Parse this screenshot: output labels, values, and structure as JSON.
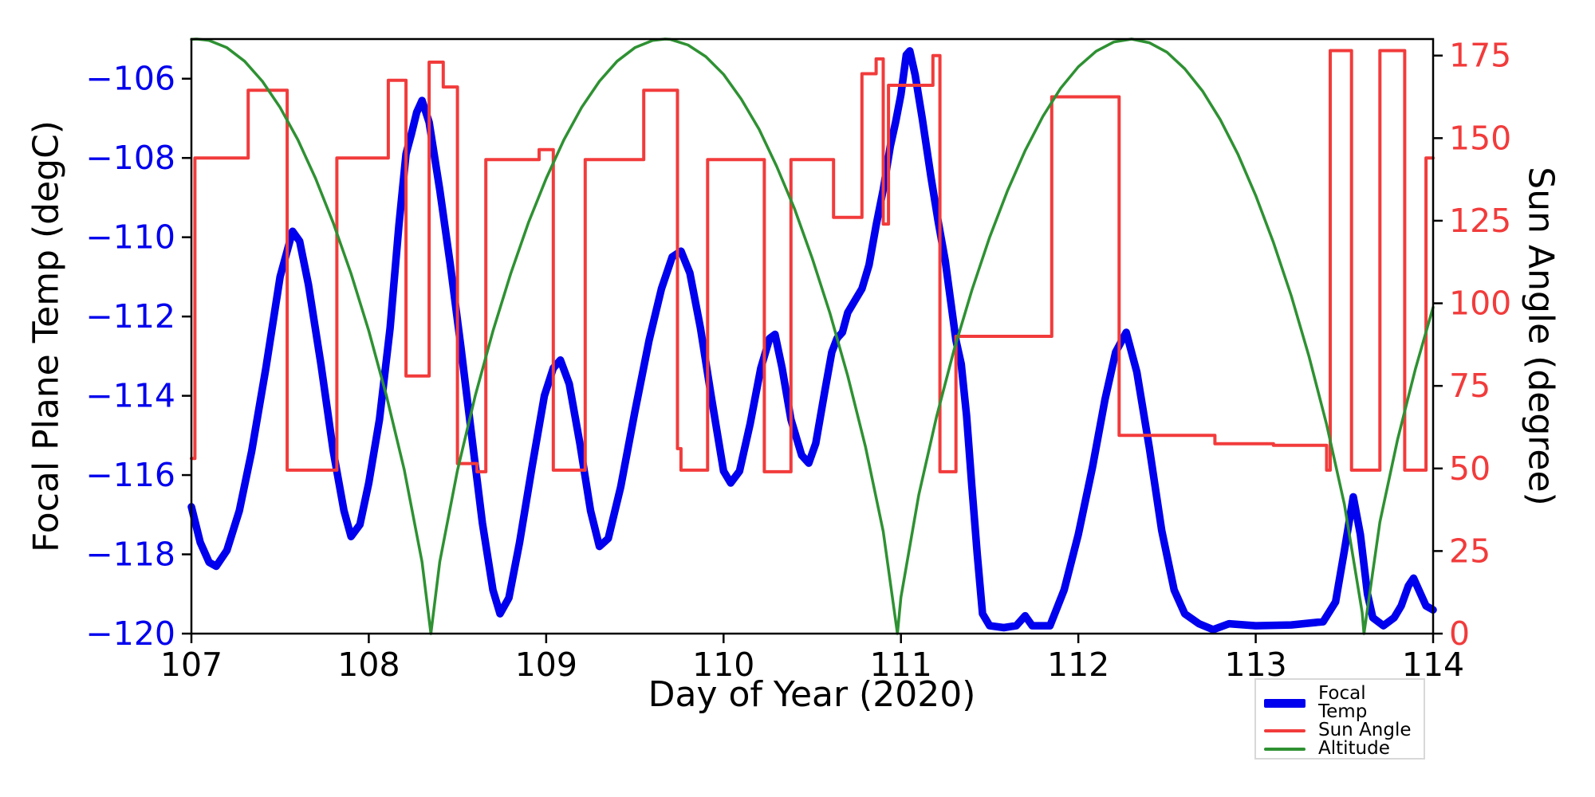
{
  "chart_data": {
    "type": "line",
    "title": "",
    "xlabel": "Day of Year (2020)",
    "ylabel_left": "Focal Plane Temp (degC)",
    "ylabel_right": "Sun Angle (degree)",
    "x_range": [
      107,
      114
    ],
    "x_ticks": [
      107,
      108,
      109,
      110,
      111,
      112,
      113,
      114
    ],
    "x_tick_labels": [
      "107",
      "108",
      "109",
      "110",
      "111",
      "112",
      "113",
      "114"
    ],
    "y_left_range": [
      -120,
      -105
    ],
    "y_left_ticks": [
      -106,
      -108,
      -110,
      -112,
      -114,
      -116,
      -118,
      -120
    ],
    "y_left_tick_labels": [
      "−106",
      "−108",
      "−110",
      "−112",
      "−114",
      "−116",
      "−118",
      "−120"
    ],
    "y_right_range": [
      0,
      180
    ],
    "y_right_ticks": [
      0,
      25,
      50,
      75,
      100,
      125,
      150,
      175
    ],
    "y_right_tick_labels": [
      "0",
      "25",
      "50",
      "75",
      "100",
      "125",
      "150",
      "175"
    ],
    "grid": false,
    "legend_position": "below-right-outside",
    "colors": {
      "focal_temp": "#0000ee",
      "sun_angle": "#f23b3b",
      "altitude": "#2e9132",
      "left_tick_text": "#0000ee",
      "right_tick_text": "#f23b3b",
      "axis": "#000000"
    },
    "series": [
      {
        "name": "Focal Temp",
        "axis": "left",
        "color": "#0000ee",
        "line_width": 9.5,
        "style": "line",
        "points": [
          [
            107.0,
            -116.8
          ],
          [
            107.05,
            -117.7
          ],
          [
            107.1,
            -118.2
          ],
          [
            107.14,
            -118.3
          ],
          [
            107.2,
            -117.9
          ],
          [
            107.27,
            -116.9
          ],
          [
            107.34,
            -115.4
          ],
          [
            107.42,
            -113.3
          ],
          [
            107.5,
            -111.0
          ],
          [
            107.57,
            -109.85
          ],
          [
            107.61,
            -110.1
          ],
          [
            107.66,
            -111.2
          ],
          [
            107.73,
            -113.2
          ],
          [
            107.8,
            -115.4
          ],
          [
            107.86,
            -116.9
          ],
          [
            107.9,
            -117.55
          ],
          [
            107.95,
            -117.25
          ],
          [
            108.0,
            -116.2
          ],
          [
            108.06,
            -114.6
          ],
          [
            108.12,
            -112.3
          ],
          [
            108.17,
            -109.7
          ],
          [
            108.21,
            -107.9
          ],
          [
            108.24,
            -107.4
          ],
          [
            108.27,
            -106.85
          ],
          [
            108.3,
            -106.55
          ],
          [
            108.34,
            -107.1
          ],
          [
            108.4,
            -108.8
          ],
          [
            108.46,
            -110.7
          ],
          [
            108.52,
            -112.8
          ],
          [
            108.58,
            -115.0
          ],
          [
            108.64,
            -117.2
          ],
          [
            108.7,
            -118.9
          ],
          [
            108.74,
            -119.5
          ],
          [
            108.79,
            -119.1
          ],
          [
            108.85,
            -117.7
          ],
          [
            108.92,
            -115.8
          ],
          [
            108.99,
            -114.0
          ],
          [
            109.04,
            -113.3
          ],
          [
            109.08,
            -113.1
          ],
          [
            109.13,
            -113.7
          ],
          [
            109.19,
            -115.2
          ],
          [
            109.25,
            -116.9
          ],
          [
            109.3,
            -117.8
          ],
          [
            109.35,
            -117.6
          ],
          [
            109.42,
            -116.3
          ],
          [
            109.5,
            -114.4
          ],
          [
            109.58,
            -112.6
          ],
          [
            109.65,
            -111.3
          ],
          [
            109.71,
            -110.5
          ],
          [
            109.76,
            -110.35
          ],
          [
            109.81,
            -110.9
          ],
          [
            109.87,
            -112.3
          ],
          [
            109.93,
            -114.0
          ],
          [
            110.0,
            -115.9
          ],
          [
            110.04,
            -116.2
          ],
          [
            110.09,
            -115.9
          ],
          [
            110.15,
            -114.7
          ],
          [
            110.21,
            -113.3
          ],
          [
            110.26,
            -112.55
          ],
          [
            110.29,
            -112.45
          ],
          [
            110.33,
            -113.3
          ],
          [
            110.38,
            -114.6
          ],
          [
            110.44,
            -115.5
          ],
          [
            110.48,
            -115.7
          ],
          [
            110.52,
            -115.2
          ],
          [
            110.57,
            -113.9
          ],
          [
            110.61,
            -112.9
          ],
          [
            110.64,
            -112.55
          ],
          [
            110.67,
            -112.4
          ],
          [
            110.7,
            -111.9
          ],
          [
            110.74,
            -111.6
          ],
          [
            110.78,
            -111.3
          ],
          [
            110.82,
            -110.7
          ],
          [
            110.86,
            -109.7
          ],
          [
            110.9,
            -108.8
          ],
          [
            110.94,
            -107.7
          ],
          [
            110.97,
            -107.1
          ],
          [
            111.0,
            -106.4
          ],
          [
            111.03,
            -105.4
          ],
          [
            111.05,
            -105.3
          ],
          [
            111.08,
            -105.9
          ],
          [
            111.12,
            -107.0
          ],
          [
            111.17,
            -108.5
          ],
          [
            111.21,
            -109.6
          ],
          [
            111.25,
            -110.6
          ],
          [
            111.28,
            -111.6
          ],
          [
            111.31,
            -112.6
          ],
          [
            111.34,
            -113.2
          ],
          [
            111.37,
            -114.5
          ],
          [
            111.4,
            -116.3
          ],
          [
            111.43,
            -118.0
          ],
          [
            111.46,
            -119.5
          ],
          [
            111.5,
            -119.8
          ],
          [
            111.58,
            -119.85
          ],
          [
            111.65,
            -119.8
          ],
          [
            111.7,
            -119.55
          ],
          [
            111.74,
            -119.8
          ],
          [
            111.84,
            -119.8
          ],
          [
            111.92,
            -118.9
          ],
          [
            112.0,
            -117.5
          ],
          [
            112.08,
            -115.8
          ],
          [
            112.15,
            -114.1
          ],
          [
            112.21,
            -112.9
          ],
          [
            112.27,
            -112.4
          ],
          [
            112.33,
            -113.4
          ],
          [
            112.4,
            -115.3
          ],
          [
            112.47,
            -117.4
          ],
          [
            112.54,
            -118.9
          ],
          [
            112.6,
            -119.5
          ],
          [
            112.68,
            -119.75
          ],
          [
            112.76,
            -119.9
          ],
          [
            112.85,
            -119.75
          ],
          [
            113.0,
            -119.8
          ],
          [
            113.2,
            -119.78
          ],
          [
            113.38,
            -119.7
          ],
          [
            113.45,
            -119.2
          ],
          [
            113.5,
            -117.9
          ],
          [
            113.55,
            -116.55
          ],
          [
            113.59,
            -117.5
          ],
          [
            113.63,
            -119.0
          ],
          [
            113.66,
            -119.6
          ],
          [
            113.72,
            -119.8
          ],
          [
            113.78,
            -119.6
          ],
          [
            113.82,
            -119.3
          ],
          [
            113.86,
            -118.8
          ],
          [
            113.89,
            -118.6
          ],
          [
            113.93,
            -119.0
          ],
          [
            113.96,
            -119.3
          ],
          [
            114.0,
            -119.4
          ]
        ]
      },
      {
        "name": "Sun Angle",
        "axis": "right",
        "color": "#f23b3b",
        "line_width": 4,
        "style": "step",
        "points": [
          [
            107.0,
            53
          ],
          [
            107.02,
            144
          ],
          [
            107.32,
            164.5
          ],
          [
            107.54,
            49.5
          ],
          [
            107.82,
            144
          ],
          [
            108.11,
            167.5
          ],
          [
            108.21,
            78
          ],
          [
            108.34,
            173
          ],
          [
            108.42,
            165.5
          ],
          [
            108.5,
            51.5
          ],
          [
            108.61,
            49
          ],
          [
            108.66,
            143.5
          ],
          [
            108.96,
            146.5
          ],
          [
            109.04,
            49.5
          ],
          [
            109.22,
            143.5
          ],
          [
            109.55,
            164.5
          ],
          [
            109.74,
            56
          ],
          [
            109.76,
            49.5
          ],
          [
            109.91,
            143.5
          ],
          [
            110.23,
            49
          ],
          [
            110.38,
            143.5
          ],
          [
            110.62,
            126
          ],
          [
            110.78,
            169.5
          ],
          [
            110.86,
            174
          ],
          [
            110.9,
            124
          ],
          [
            110.93,
            166
          ],
          [
            111.18,
            175
          ],
          [
            111.22,
            49
          ],
          [
            111.31,
            90
          ],
          [
            111.85,
            162.5
          ],
          [
            112.23,
            60
          ],
          [
            112.77,
            57.5
          ],
          [
            113.1,
            57
          ],
          [
            113.4,
            49.5
          ],
          [
            113.42,
            176.5
          ],
          [
            113.54,
            49.5
          ],
          [
            113.7,
            176.5
          ],
          [
            113.84,
            49.5
          ],
          [
            113.96,
            144
          ],
          [
            114.0,
            144
          ]
        ]
      },
      {
        "name": "Altitude",
        "axis": "right",
        "color": "#2e9132",
        "line_width": 3.5,
        "style": "line",
        "points": [
          [
            107.0,
            179.9
          ],
          [
            107.03,
            180
          ],
          [
            107.1,
            179.6
          ],
          [
            107.2,
            177.4
          ],
          [
            107.3,
            173.3
          ],
          [
            107.4,
            167.2
          ],
          [
            107.5,
            159.3
          ],
          [
            107.6,
            149.5
          ],
          [
            107.7,
            137.8
          ],
          [
            107.8,
            124.3
          ],
          [
            107.9,
            109.0
          ],
          [
            108.0,
            91.7
          ],
          [
            108.1,
            71.9
          ],
          [
            108.2,
            49.6
          ],
          [
            108.3,
            21.7
          ],
          [
            108.35,
            0
          ],
          [
            108.4,
            21.7
          ],
          [
            108.5,
            49.4
          ],
          [
            108.6,
            72.0
          ],
          [
            108.7,
            91.6
          ],
          [
            108.8,
            109.0
          ],
          [
            108.9,
            124.4
          ],
          [
            109.0,
            137.8
          ],
          [
            109.1,
            149.5
          ],
          [
            109.2,
            159.3
          ],
          [
            109.3,
            167.2
          ],
          [
            109.4,
            173.3
          ],
          [
            109.5,
            177.4
          ],
          [
            109.6,
            179.6
          ],
          [
            109.67,
            180
          ],
          [
            109.7,
            179.9
          ],
          [
            109.8,
            178.2
          ],
          [
            109.9,
            174.7
          ],
          [
            110.0,
            169.3
          ],
          [
            110.1,
            161.8
          ],
          [
            110.2,
            152.7
          ],
          [
            110.3,
            141.4
          ],
          [
            110.4,
            128.6
          ],
          [
            110.5,
            113.6
          ],
          [
            110.6,
            97.0
          ],
          [
            110.7,
            78.0
          ],
          [
            110.8,
            56.6
          ],
          [
            110.9,
            30.9
          ],
          [
            110.98,
            0
          ],
          [
            111.0,
            11.0
          ],
          [
            111.1,
            41.9
          ],
          [
            111.2,
            65.5
          ],
          [
            111.3,
            86.0
          ],
          [
            111.4,
            104.0
          ],
          [
            111.5,
            120.0
          ],
          [
            111.6,
            134.0
          ],
          [
            111.7,
            146.2
          ],
          [
            111.8,
            156.6
          ],
          [
            111.9,
            165.1
          ],
          [
            112.0,
            171.6
          ],
          [
            112.1,
            176.3
          ],
          [
            112.2,
            179.1
          ],
          [
            112.3,
            180
          ],
          [
            112.4,
            178.9
          ],
          [
            112.5,
            176.0
          ],
          [
            112.6,
            171.0
          ],
          [
            112.7,
            164.3
          ],
          [
            112.8,
            155.6
          ],
          [
            112.9,
            145.1
          ],
          [
            113.0,
            132.6
          ],
          [
            113.1,
            118.4
          ],
          [
            113.2,
            102.3
          ],
          [
            113.3,
            84.0
          ],
          [
            113.4,
            63.3
          ],
          [
            113.5,
            39.1
          ],
          [
            113.6,
            6.5
          ],
          [
            113.61,
            0
          ],
          [
            113.7,
            33.8
          ],
          [
            113.8,
            58.8
          ],
          [
            113.9,
            80.1
          ],
          [
            114.0,
            98.8
          ]
        ]
      }
    ]
  }
}
